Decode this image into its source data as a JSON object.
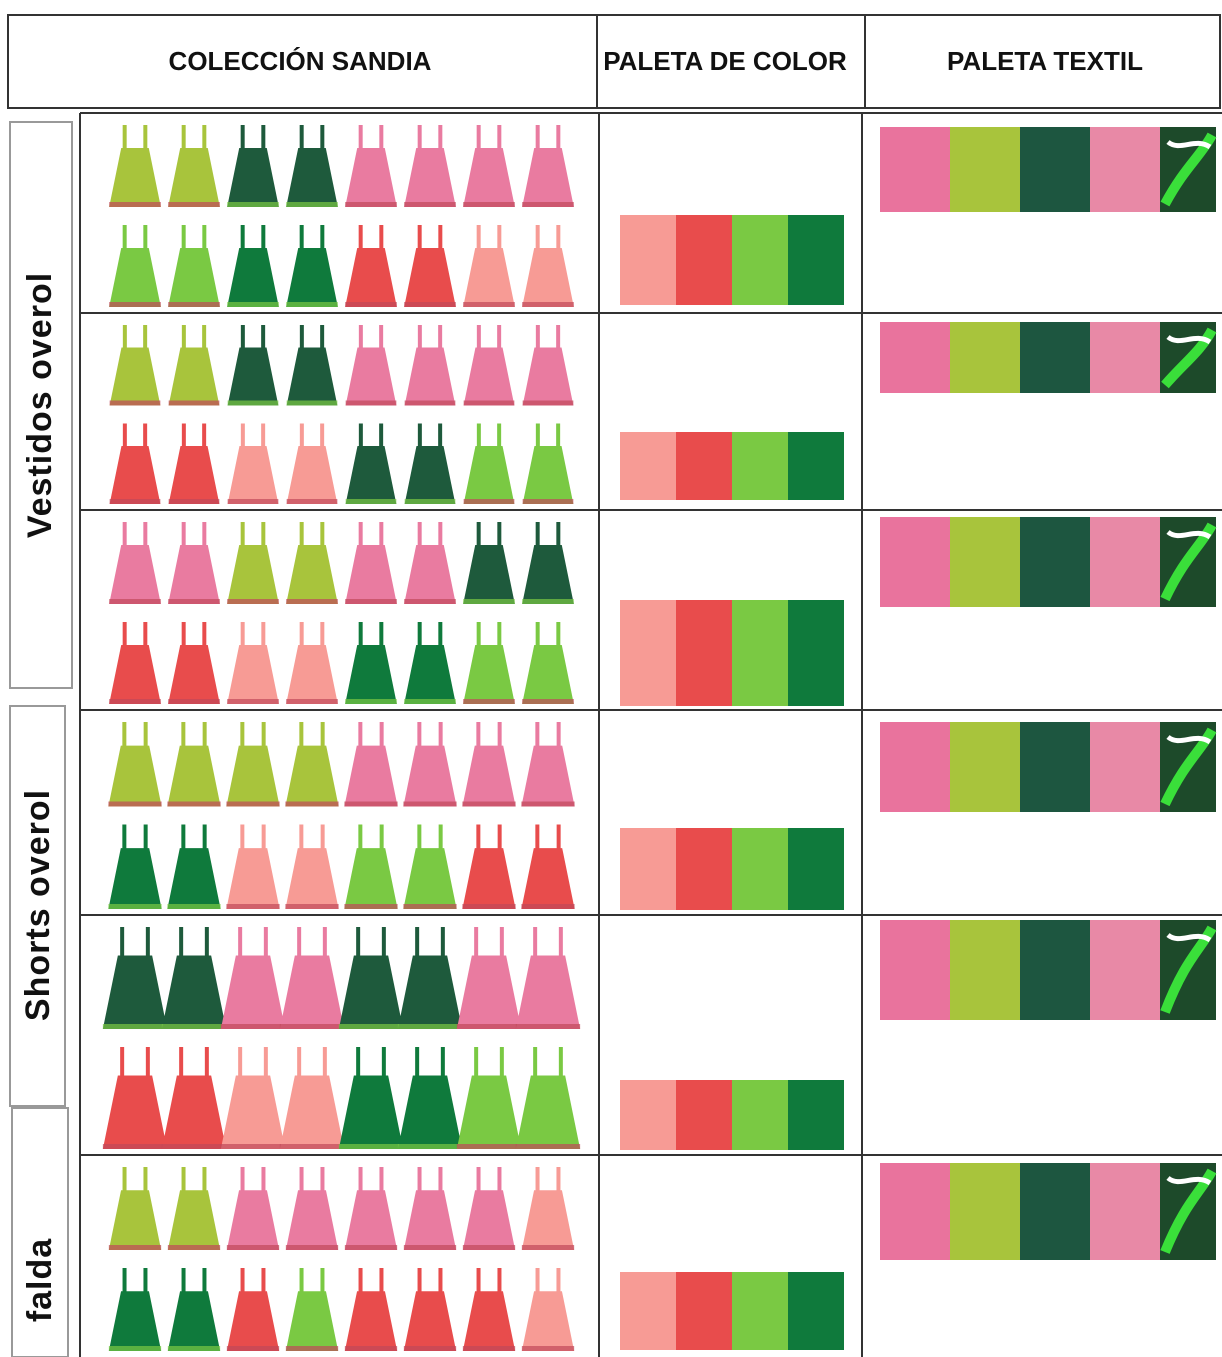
{
  "header": {
    "collection": "COLECCIÓN SANDIA",
    "color_palette": "PALETA DE COLOR",
    "textile_palette": "PALETA TEXTIL"
  },
  "groups": [
    {
      "label": "Vestidos  overol"
    },
    {
      "label": "Shorts overol"
    },
    {
      "label": "falda"
    }
  ]
}
